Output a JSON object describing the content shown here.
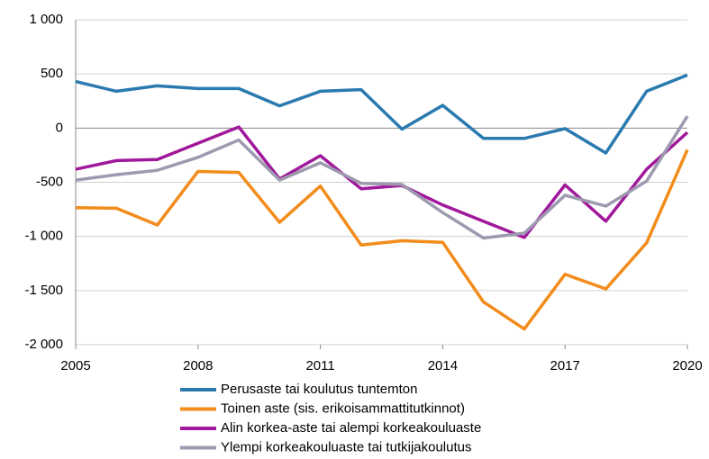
{
  "chart_data": {
    "type": "line",
    "x": [
      2005,
      2006,
      2007,
      2008,
      2009,
      2010,
      2011,
      2012,
      2013,
      2014,
      2015,
      2016,
      2017,
      2018,
      2019,
      2020
    ],
    "xlim": [
      2005,
      2020
    ],
    "xticks": [
      2005,
      2008,
      2011,
      2014,
      2017,
      2020
    ],
    "ylim": [
      -2000,
      1000
    ],
    "yticks": [
      {
        "value": -2000,
        "label": "-2 000"
      },
      {
        "value": -1500,
        "label": "-1 500"
      },
      {
        "value": -1000,
        "label": "-1 000"
      },
      -500,
      0,
      500,
      {
        "value": 1000,
        "label": "1 000"
      }
    ],
    "grid": true,
    "legend": "bottom",
    "series": [
      {
        "name": "Perusaste tai koulutus tuntemton",
        "color": "#2a7ab0",
        "values": [
          430,
          340,
          390,
          365,
          365,
          205,
          340,
          355,
          -10,
          210,
          -95,
          -95,
          -5,
          -230,
          340,
          490
        ]
      },
      {
        "name": "Toinen aste (sis. erikoisammattitutkinnot)",
        "color": "#f28c1c",
        "values": [
          -735,
          -740,
          -895,
          -400,
          -410,
          -870,
          -535,
          -1080,
          -1040,
          -1055,
          -1605,
          -1855,
          -1350,
          -1485,
          -1060,
          -200
        ]
      },
      {
        "name": "Alin korkea-aste tai alempi korkeakouluaste",
        "color": "#a0199b",
        "values": [
          -380,
          -300,
          -290,
          -140,
          10,
          -470,
          -255,
          -560,
          -530,
          -710,
          -860,
          -1010,
          -525,
          -860,
          -380,
          -40
        ]
      },
      {
        "name": "Ylempi korkeakouluaste tai tutkijakoulutus",
        "color": "#9d9ab0",
        "values": [
          -480,
          -430,
          -390,
          -270,
          -110,
          -480,
          -320,
          -510,
          -520,
          -780,
          -1015,
          -970,
          -620,
          -720,
          -490,
          110
        ]
      }
    ]
  }
}
